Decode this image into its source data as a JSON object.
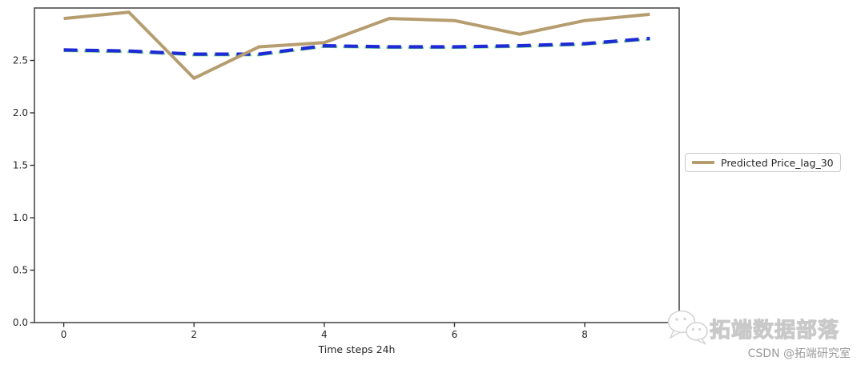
{
  "figure": {
    "background": "#ffffff",
    "xlabel": "Time steps 24h",
    "legend": {
      "label": "Predicted Price_lag_30",
      "position": "right-outside"
    },
    "watermark": {
      "brand": "拓端数据部落",
      "credit": "CSDN @拓端研究室",
      "icon": "wechat-icon"
    }
  },
  "chart_data": {
    "type": "line",
    "title": "",
    "xlabel": "Time steps 24h",
    "ylabel": "",
    "x": [
      0,
      1,
      2,
      3,
      4,
      5,
      6,
      7,
      8,
      9
    ],
    "series": [
      {
        "name": "Predicted Price_lag_30",
        "color": "#b69d6f",
        "line_style": "solid",
        "line_width": 4,
        "in_legend": true,
        "values": [
          2.9,
          2.96,
          2.33,
          2.63,
          2.67,
          2.9,
          2.88,
          2.75,
          2.88,
          2.94
        ]
      },
      {
        "name": "",
        "note": "unlabeled dashed series, drawn over a thin green underlay line",
        "color": "#1e2ad6",
        "underlay_color": "#79d98c",
        "line_style": "dashed",
        "line_width": 4.2,
        "in_legend": false,
        "values": [
          2.6,
          2.59,
          2.56,
          2.56,
          2.64,
          2.63,
          2.63,
          2.64,
          2.66,
          2.71
        ]
      }
    ],
    "xlim": [
      -0.45,
      9.45
    ],
    "ylim": [
      0,
      3.0
    ],
    "xticks": [
      0,
      2,
      4,
      6,
      8
    ],
    "yticks": [
      0.0,
      0.5,
      1.0,
      1.5,
      2.0,
      2.5
    ],
    "grid": false,
    "legend_position": "center right outside axes",
    "spine_color": "#4d4d4d",
    "tick_color": "#333333",
    "tick_label_color": "#262626"
  }
}
